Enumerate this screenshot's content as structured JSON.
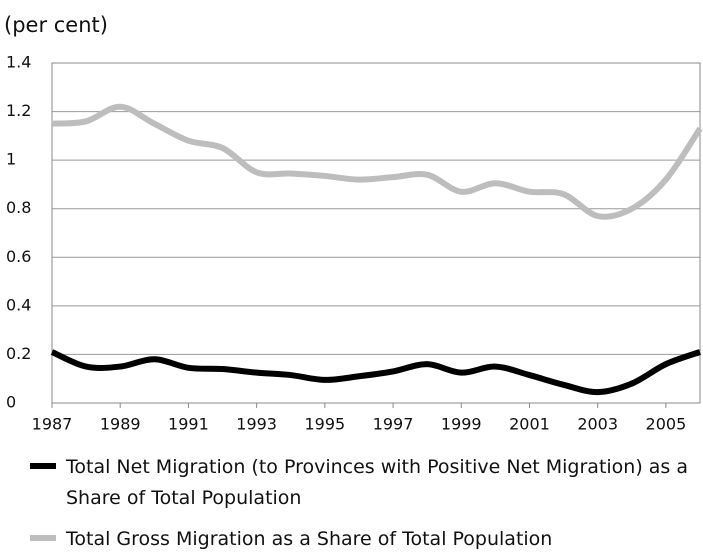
{
  "chart_data": {
    "type": "line",
    "y_label": "(per cent)",
    "x": [
      1987,
      1988,
      1989,
      1990,
      1991,
      1992,
      1993,
      1994,
      1995,
      1996,
      1997,
      1998,
      1999,
      2000,
      2001,
      2002,
      2003,
      2004,
      2005,
      2006
    ],
    "xlim": [
      1987,
      2006
    ],
    "xticks": [
      1987,
      1989,
      1991,
      1993,
      1995,
      1997,
      1999,
      2001,
      2003,
      2005
    ],
    "ylim": [
      0,
      1.4
    ],
    "yticks": [
      0,
      0.2,
      0.4,
      0.6,
      0.8,
      1,
      1.2,
      1.4
    ],
    "grid": true,
    "legend": "bottom",
    "series": [
      {
        "name": "Total Net Migration (to Provinces with Positive Net Migration) as a Share of Total Population",
        "color": "#000000",
        "values": [
          0.21,
          0.15,
          0.15,
          0.18,
          0.145,
          0.14,
          0.125,
          0.115,
          0.095,
          0.11,
          0.13,
          0.16,
          0.125,
          0.15,
          0.115,
          0.075,
          0.045,
          0.08,
          0.16,
          0.21
        ]
      },
      {
        "name": "Total Gross Migration as a Share of Total Population",
        "color": "#bdbdbd",
        "values": [
          1.15,
          1.16,
          1.22,
          1.15,
          1.08,
          1.05,
          0.95,
          0.945,
          0.935,
          0.92,
          0.93,
          0.94,
          0.87,
          0.905,
          0.87,
          0.86,
          0.77,
          0.8,
          0.92,
          1.13
        ]
      }
    ]
  }
}
